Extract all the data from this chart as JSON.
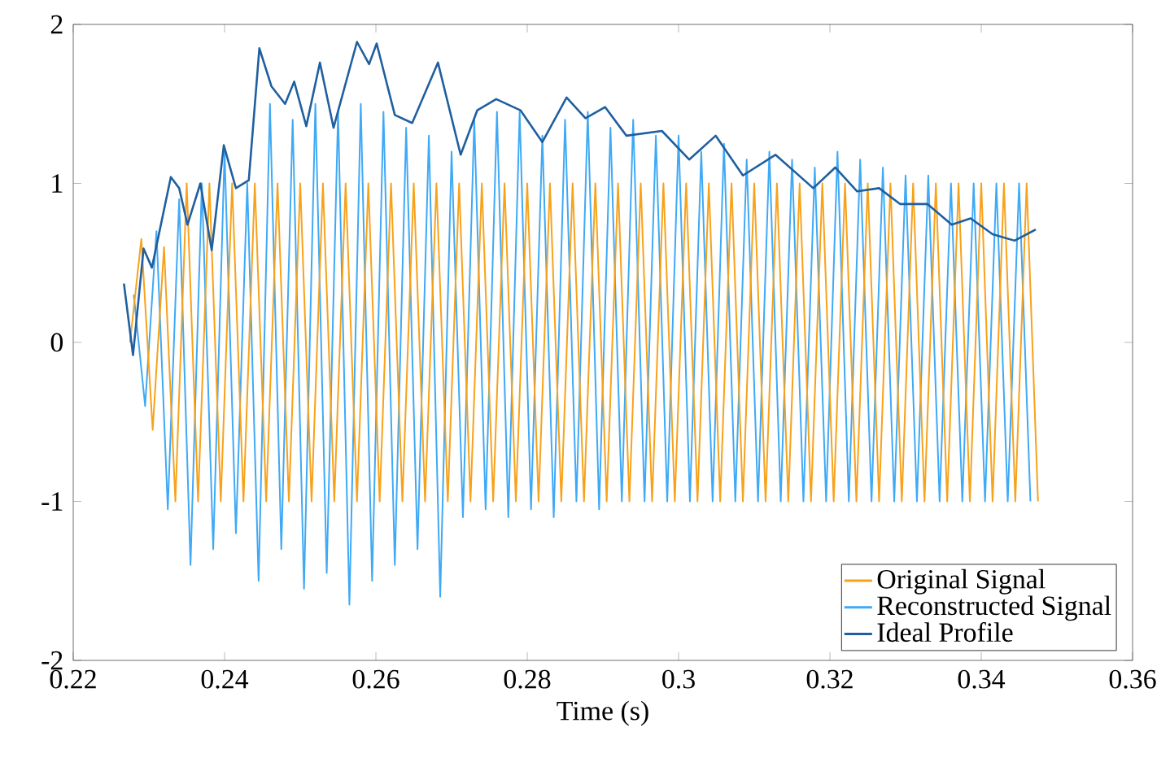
{
  "chart_data": {
    "type": "line",
    "xlabel": "Time (s)",
    "xlim": [
      0.22,
      0.36
    ],
    "xticks": [
      0.22,
      0.24,
      0.26,
      0.28,
      0.3,
      0.32,
      0.34,
      0.36
    ],
    "ylim": [
      -2,
      2
    ],
    "yticks": [
      -2,
      -1,
      0,
      1,
      2
    ],
    "legend": "bottom right",
    "series": [
      {
        "name": "Original Signal",
        "color": "#f7a21b",
        "x": [
          0.2275,
          0.229,
          0.2305,
          0.232,
          0.2335,
          0.235,
          0.2365,
          0.238,
          0.2395,
          0.241,
          0.2425,
          0.244,
          0.2455,
          0.247,
          0.2485,
          0.25,
          0.2515,
          0.253,
          0.2545,
          0.256,
          0.2575,
          0.259,
          0.2605,
          0.262,
          0.2635,
          0.265,
          0.2665,
          0.268,
          0.2695,
          0.271,
          0.2725,
          0.274,
          0.2755,
          0.277,
          0.2785,
          0.28,
          0.2815,
          0.283,
          0.2845,
          0.286,
          0.2875,
          0.289,
          0.2905,
          0.292,
          0.2935,
          0.295,
          0.2965,
          0.298,
          0.2995,
          0.301,
          0.3025,
          0.304,
          0.3055,
          0.307,
          0.3085,
          0.31,
          0.3115,
          0.313,
          0.3145,
          0.316,
          0.3175,
          0.319,
          0.3205,
          0.322,
          0.3235,
          0.325,
          0.3265,
          0.328,
          0.3295,
          0.331,
          0.3325,
          0.334,
          0.3355,
          0.337,
          0.3385,
          0.34,
          0.3415,
          0.343,
          0.3445,
          0.346,
          0.3475
        ],
        "values": [
          0,
          0.65,
          -0.55,
          0.6,
          -1,
          1,
          -1,
          1,
          -1,
          1,
          -1,
          1,
          -1,
          1,
          -1,
          1,
          -1,
          1,
          -1,
          1,
          -1,
          1,
          -1,
          1,
          -1,
          1,
          -1,
          1,
          -1,
          1,
          -1,
          1,
          -1,
          1,
          -1,
          1,
          -1,
          1,
          -1,
          1,
          -1,
          1,
          -1,
          1,
          -1,
          1,
          -1,
          1,
          -1,
          1,
          -1,
          1,
          -1,
          1,
          -1,
          1,
          -1,
          1,
          -1,
          1,
          -1,
          1,
          -1,
          1,
          -1,
          1,
          -1,
          1,
          -1,
          1,
          -1,
          1,
          -1,
          1,
          -1,
          1,
          -1,
          1,
          -1,
          1,
          -1
        ]
      },
      {
        "name": "Reconstructed Signal",
        "color": "#3fa9f5",
        "x": [
          0.228,
          0.2295,
          0.231,
          0.2325,
          0.234,
          0.2355,
          0.237,
          0.2385,
          0.24,
          0.2415,
          0.243,
          0.2445,
          0.246,
          0.2475,
          0.249,
          0.2505,
          0.252,
          0.2535,
          0.255,
          0.2565,
          0.258,
          0.2595,
          0.261,
          0.2625,
          0.264,
          0.2655,
          0.267,
          0.2685,
          0.27,
          0.2715,
          0.273,
          0.2745,
          0.276,
          0.2775,
          0.279,
          0.2805,
          0.282,
          0.2835,
          0.285,
          0.2865,
          0.288,
          0.2895,
          0.291,
          0.2925,
          0.294,
          0.2955,
          0.297,
          0.2985,
          0.3,
          0.3015,
          0.303,
          0.3045,
          0.306,
          0.3075,
          0.309,
          0.3105,
          0.312,
          0.3135,
          0.315,
          0.3165,
          0.318,
          0.3195,
          0.321,
          0.3225,
          0.324,
          0.3255,
          0.327,
          0.3285,
          0.33,
          0.3315,
          0.333,
          0.3345,
          0.336,
          0.3375,
          0.339,
          0.3405,
          0.342,
          0.3435,
          0.345,
          0.3465
        ],
        "values": [
          0.3,
          -0.4,
          0.7,
          -1.05,
          0.9,
          -1.4,
          1.0,
          -1.3,
          1.2,
          -1.2,
          1.0,
          -1.5,
          1.5,
          -1.3,
          1.4,
          -1.55,
          1.5,
          -1.45,
          1.45,
          -1.65,
          1.5,
          -1.5,
          1.45,
          -1.4,
          1.35,
          -1.3,
          1.3,
          -1.6,
          1.2,
          -1.1,
          1.4,
          -1.05,
          1.45,
          -1.1,
          1.45,
          -1.05,
          1.3,
          -1.1,
          1.4,
          -1.0,
          1.45,
          -1.05,
          1.35,
          -1.0,
          1.4,
          -1.0,
          1.3,
          -1.0,
          1.3,
          -1.0,
          1.2,
          -1.0,
          1.25,
          -1.0,
          1.15,
          -1.0,
          1.2,
          -1.0,
          1.15,
          -1.0,
          1.1,
          -1.0,
          1.2,
          -1.0,
          1.15,
          -1.0,
          1.1,
          -1.0,
          1.05,
          -1.0,
          1.05,
          -1.0,
          1.0,
          -1.0,
          1.0,
          -1.0,
          1.0,
          -1.0,
          1.0,
          -1.0
        ]
      },
      {
        "name": "Ideal Profile",
        "color": "#1f5f9f",
        "x": [
          0.2267,
          0.2279,
          0.2293,
          0.2304,
          0.2329,
          0.234,
          0.2351,
          0.2368,
          0.2383,
          0.2399,
          0.2415,
          0.2432,
          0.2446,
          0.2462,
          0.248,
          0.2492,
          0.2508,
          0.2526,
          0.2544,
          0.2575,
          0.2591,
          0.2601,
          0.2625,
          0.2648,
          0.2682,
          0.2712,
          0.2734,
          0.2759,
          0.2791,
          0.282,
          0.2852,
          0.2877,
          0.2903,
          0.2931,
          0.2978,
          0.3014,
          0.3049,
          0.3085,
          0.3128,
          0.3178,
          0.3207,
          0.3236,
          0.3265,
          0.3293,
          0.3329,
          0.3361,
          0.3386,
          0.3415,
          0.3444,
          0.3472
        ],
        "values": [
          0.37,
          -0.08,
          0.59,
          0.47,
          1.04,
          0.97,
          0.74,
          1.0,
          0.58,
          1.24,
          0.97,
          1.02,
          1.85,
          1.61,
          1.5,
          1.64,
          1.36,
          1.76,
          1.35,
          1.89,
          1.75,
          1.88,
          1.43,
          1.38,
          1.76,
          1.18,
          1.46,
          1.53,
          1.46,
          1.26,
          1.54,
          1.41,
          1.48,
          1.3,
          1.33,
          1.15,
          1.3,
          1.05,
          1.18,
          0.97,
          1.1,
          0.95,
          0.97,
          0.87,
          0.87,
          0.74,
          0.78,
          0.68,
          0.64,
          0.71
        ]
      }
    ]
  }
}
